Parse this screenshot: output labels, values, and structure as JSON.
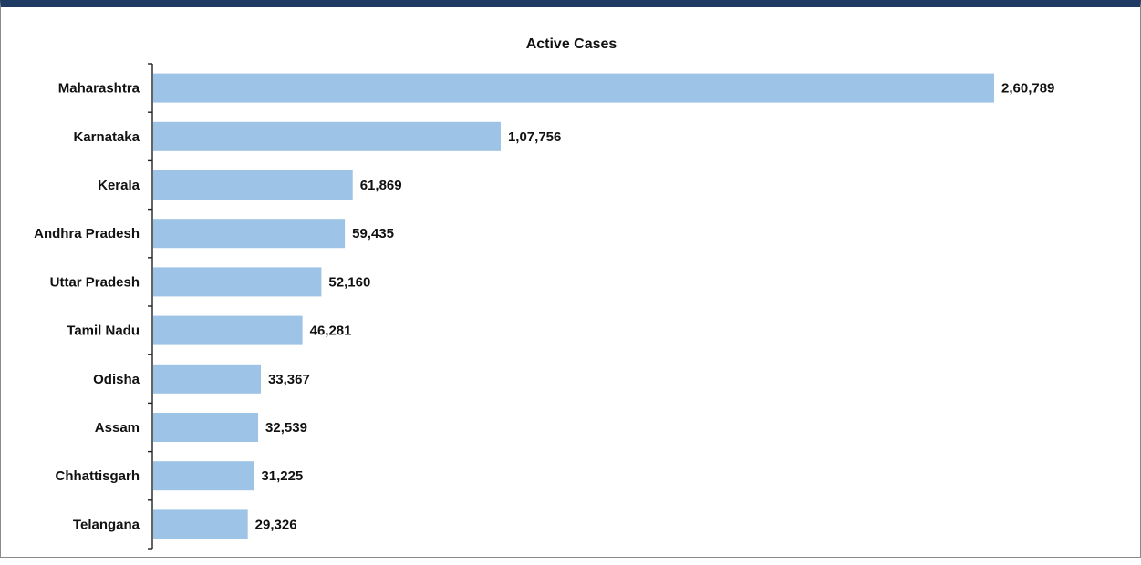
{
  "chart_data": {
    "type": "bar",
    "orientation": "horizontal",
    "title": "Active Cases",
    "xlabel": "",
    "ylabel": "",
    "categories": [
      "Maharashtra",
      "Karnataka",
      "Kerala",
      "Andhra Pradesh",
      "Uttar Pradesh",
      "Tamil Nadu",
      "Odisha",
      "Assam",
      "Chhattisgarh",
      "Telangana"
    ],
    "values": [
      260789,
      107756,
      61869,
      59435,
      52160,
      46281,
      33367,
      32539,
      31225,
      29326
    ],
    "value_labels": [
      "2,60,789",
      "1,07,756",
      "61,869",
      "59,435",
      "52,160",
      "46,281",
      "33,367",
      "32,539",
      "31,225",
      "29,326"
    ],
    "bar_color": "#9dc3e6",
    "grid": false,
    "legend": "none"
  }
}
